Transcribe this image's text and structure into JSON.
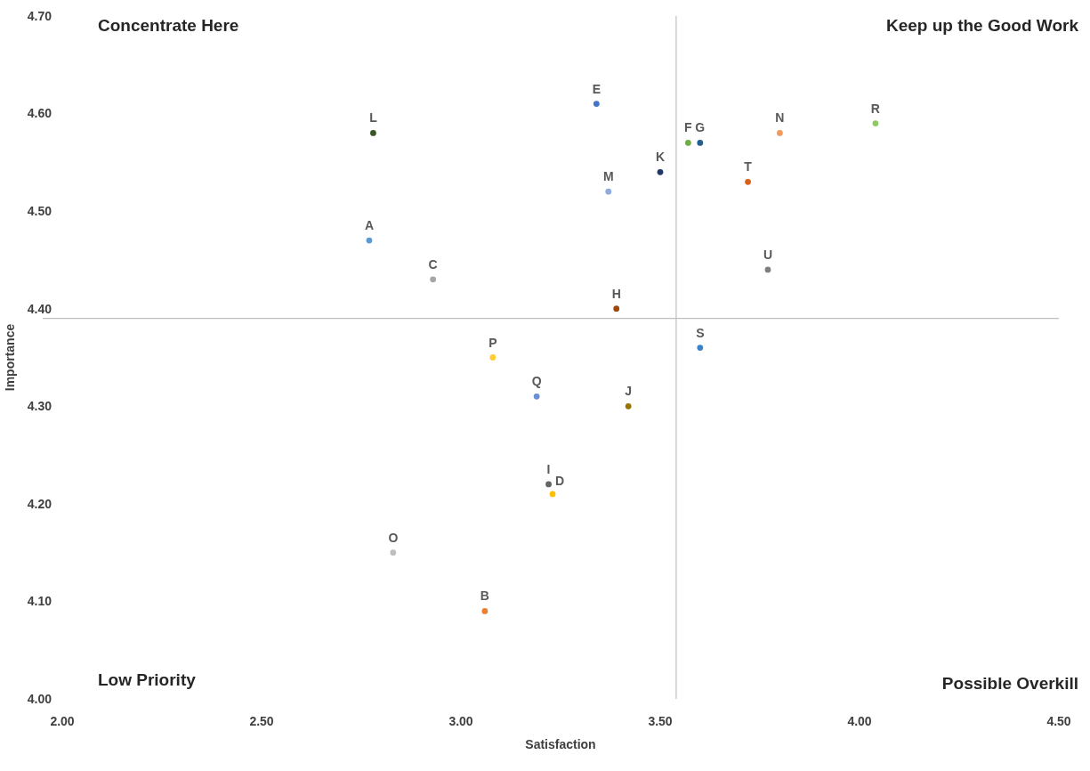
{
  "chart_data": {
    "type": "scatter",
    "xlabel": "Satisfaction",
    "ylabel": "Importance",
    "xlim": [
      2,
      4.5
    ],
    "xticks": [
      {
        "value": 2,
        "label": "2.00"
      },
      {
        "value": 2.5,
        "label": "2.50"
      },
      {
        "value": 3,
        "label": "3.00"
      },
      {
        "value": 3.5,
        "label": "3.50"
      },
      {
        "value": 4,
        "label": "4.00"
      },
      {
        "value": 4.5,
        "label": "4.50"
      }
    ],
    "ylim": [
      4,
      4.7
    ],
    "yticks": [
      {
        "value": 4,
        "label": "4.00"
      },
      {
        "value": 4.1,
        "label": "4.10"
      },
      {
        "value": 4.2,
        "label": "4.20"
      },
      {
        "value": 4.3,
        "label": "4.30"
      },
      {
        "value": 4.4,
        "label": "4.40"
      },
      {
        "value": 4.5,
        "label": "4.50"
      },
      {
        "value": 4.6,
        "label": "4.60"
      },
      {
        "value": 4.7,
        "label": "4.70"
      }
    ],
    "grid": false,
    "marker": "circle",
    "ref_lines": [
      {
        "axis": "x",
        "value": 3.54,
        "color": "#bfbfbf"
      },
      {
        "axis": "y",
        "value": 4.39,
        "color": "#bfbfbf"
      }
    ],
    "annotations": [
      "Concentrate Here",
      "Keep up the Good Work",
      "Low Priority",
      "Possible Overkill"
    ],
    "series": [
      {
        "name": "A",
        "color": "#5b9bd5",
        "x": [
          2.77
        ],
        "values": [
          4.47
        ]
      },
      {
        "name": "B",
        "color": "#ed7d31",
        "x": [
          3.06
        ],
        "values": [
          4.09
        ]
      },
      {
        "name": "C",
        "color": "#a5a5a5",
        "x": [
          2.93
        ],
        "values": [
          4.43
        ]
      },
      {
        "name": "D",
        "color": "#ffc000",
        "x": [
          3.23
        ],
        "values": [
          4.21
        ]
      },
      {
        "name": "E",
        "color": "#4472c4",
        "x": [
          3.34
        ],
        "values": [
          4.61
        ]
      },
      {
        "name": "F",
        "color": "#70ad47",
        "x": [
          3.57
        ],
        "values": [
          4.57
        ]
      },
      {
        "name": "G",
        "color": "#255e91",
        "x": [
          3.6
        ],
        "values": [
          4.57
        ]
      },
      {
        "name": "H",
        "color": "#9e480e",
        "x": [
          3.39
        ],
        "values": [
          4.4
        ]
      },
      {
        "name": "I",
        "color": "#636363",
        "x": [
          3.22
        ],
        "values": [
          4.22
        ]
      },
      {
        "name": "J",
        "color": "#997300",
        "x": [
          3.42
        ],
        "values": [
          4.3
        ]
      },
      {
        "name": "K",
        "color": "#203864",
        "x": [
          3.5
        ],
        "values": [
          4.54
        ]
      },
      {
        "name": "L",
        "color": "#375623",
        "x": [
          2.78
        ],
        "values": [
          4.58
        ]
      },
      {
        "name": "M",
        "color": "#8faadc",
        "x": [
          3.37
        ],
        "values": [
          4.52
        ]
      },
      {
        "name": "N",
        "color": "#f19a5f",
        "x": [
          3.8
        ],
        "values": [
          4.58
        ]
      },
      {
        "name": "O",
        "color": "#bfbfbf",
        "x": [
          2.83
        ],
        "values": [
          4.15
        ]
      },
      {
        "name": "P",
        "color": "#ffcd33",
        "x": [
          3.08
        ],
        "values": [
          4.35
        ]
      },
      {
        "name": "Q",
        "color": "#6a8fd4",
        "x": [
          3.19
        ],
        "values": [
          4.31
        ]
      },
      {
        "name": "R",
        "color": "#8fc965",
        "x": [
          4.04
        ],
        "values": [
          4.59
        ]
      },
      {
        "name": "S",
        "color": "#3b83c8",
        "x": [
          3.6
        ],
        "values": [
          4.36
        ]
      },
      {
        "name": "T",
        "color": "#d9601a",
        "x": [
          3.72
        ],
        "values": [
          4.53
        ]
      },
      {
        "name": "U",
        "color": "#7f7f7f",
        "x": [
          3.77
        ],
        "values": [
          4.44
        ]
      }
    ]
  }
}
